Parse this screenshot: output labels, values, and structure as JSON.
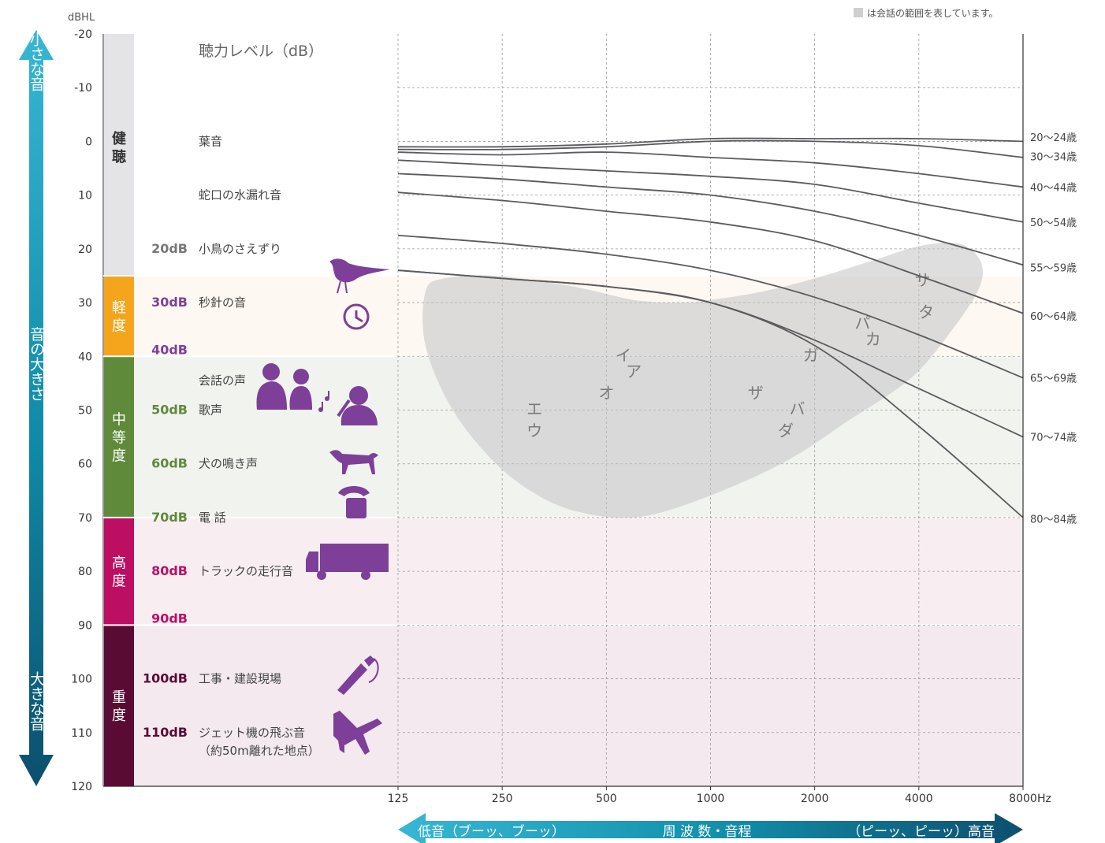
{
  "note": "は会話の範囲を表しています。",
  "colors": {
    "healthy": "#e4e4e6",
    "mild": "#f4a51c",
    "moderate": "#5f8a3a",
    "severe": "#bc0e62",
    "profound": "#5a0b34",
    "purple": "#7d3f98",
    "curve": "#5b5b5f",
    "speech": "#c2c2c4",
    "arrow": "#16809b"
  },
  "left_arrow": {
    "top": "小さな音",
    "middle": "音の大きさ",
    "bottom": "大きな音"
  },
  "bottom_arrow": {
    "left": "低音（ブーッ、ブーッ）",
    "center": "周 波 数・音程",
    "right": "（ピーッ、ピーッ）高音"
  },
  "heading": "聴力レベル（dB）",
  "categories": [
    {
      "label": "健聴",
      "from": -20,
      "to": 25,
      "band": "#ffffff",
      "color": "#e4e4e6",
      "text_color": "#333333"
    },
    {
      "label": "軽度",
      "from": 25,
      "to": 40,
      "band": "#fdf8f1",
      "color": "#f4a51c",
      "text_color": "#ffffff"
    },
    {
      "label": "中等度",
      "from": 40,
      "to": 70,
      "band": "#f1f3ef",
      "color": "#5f8a3a",
      "text_color": "#ffffff"
    },
    {
      "label": "高度",
      "from": 70,
      "to": 90,
      "band": "#f8eef2",
      "color": "#bc0e62",
      "text_color": "#ffffff"
    },
    {
      "label": "重度",
      "from": 90,
      "to": 120,
      "band": "#f3e9ef",
      "color": "#5a0b34",
      "text_color": "#ffffff"
    }
  ],
  "boundary_labels": [
    {
      "text": "40dB",
      "db": 40,
      "color": "#7d3f98"
    },
    {
      "text": "90dB",
      "db": 90,
      "color": "#bc0e62"
    }
  ],
  "examples": [
    {
      "db": 0,
      "db_label": "",
      "text": "葉音",
      "icon": "",
      "db_color": "#666666"
    },
    {
      "db": 10,
      "db_label": "",
      "text": "蛇口の水漏れ音",
      "icon": "",
      "db_color": "#666666"
    },
    {
      "db": 20,
      "db_label": "20dB",
      "text": "小鳥のさえずり",
      "icon": "bird-icon",
      "db_color": "#777777"
    },
    {
      "db": 30,
      "db_label": "30dB",
      "text": "秒針の音",
      "icon": "clock-icon",
      "db_color": "#7d3f98"
    },
    {
      "db": 44.5,
      "db_label": "",
      "text": "会話の声",
      "icon": "conversation-icon",
      "db_color": "#5f8a3a"
    },
    {
      "db": 50,
      "db_label": "50dB",
      "text": "歌声",
      "icon": "singer-icon",
      "db_color": "#5f8a3a"
    },
    {
      "db": 60,
      "db_label": "60dB",
      "text": "犬の鳴き声",
      "icon": "dog-icon",
      "db_color": "#5f8a3a"
    },
    {
      "db": 70,
      "db_label": "70dB",
      "text": "電 話",
      "icon": "telephone-icon",
      "db_color": "#5f8a3a"
    },
    {
      "db": 80,
      "db_label": "80dB",
      "text": "トラックの走行音",
      "icon": "truck-icon",
      "db_color": "#bc0e62"
    },
    {
      "db": 100,
      "db_label": "100dB",
      "text": "工事・建設現場",
      "icon": "drill-icon",
      "db_color": "#5a0b34"
    },
    {
      "db": 110,
      "db_label": "110dB",
      "text": "ジェット機の飛ぶ音",
      "icon": "jet-icon",
      "db_color": "#5a0b34"
    }
  ],
  "jet_subtext": "（約50m離れた地点）",
  "chart_data": {
    "type": "line",
    "y_unit_label": "dBHL",
    "x_unit_label": "Hz",
    "x_log2": true,
    "x_ticks": [
      125,
      250,
      500,
      1000,
      2000,
      4000,
      8000
    ],
    "x_tick_labels": [
      "125",
      "250",
      "500",
      "1000",
      "2000",
      "4000",
      "8000"
    ],
    "ylim": [
      -20,
      120
    ],
    "y_ticks": [
      -20,
      -10,
      0,
      10,
      20,
      30,
      40,
      50,
      60,
      70,
      80,
      90,
      100,
      110,
      120
    ],
    "y_inverted": true,
    "grid": "dashed",
    "series": [
      {
        "name": "20〜24歳",
        "x": [
          125,
          250,
          500,
          1000,
          2000,
          4000,
          8000
        ],
        "y": [
          1,
          1,
          0.5,
          -0.5,
          -0.5,
          -0.5,
          0
        ]
      },
      {
        "name": "30〜34歳",
        "x": [
          125,
          250,
          500,
          1000,
          2000,
          4000,
          8000
        ],
        "y": [
          1.5,
          1.5,
          1,
          0,
          0,
          0.8,
          3
        ]
      },
      {
        "name": "40〜44歳",
        "x": [
          125,
          250,
          500,
          1000,
          2000,
          4000,
          8000
        ],
        "y": [
          2,
          2.5,
          2,
          3,
          4,
          6,
          8.5
        ]
      },
      {
        "name": "50〜54歳",
        "x": [
          125,
          250,
          500,
          1000,
          2000,
          4000,
          8000
        ],
        "y": [
          3.5,
          4.5,
          5.5,
          6.5,
          8,
          11.5,
          15
        ]
      },
      {
        "name": "55〜59歳",
        "x": [
          125,
          250,
          500,
          1000,
          2000,
          4000,
          8000
        ],
        "y": [
          6,
          7,
          8.5,
          10,
          13,
          17.5,
          23
        ]
      },
      {
        "name": "60〜64歳",
        "x": [
          125,
          250,
          500,
          1000,
          2000,
          4000,
          8000
        ],
        "y": [
          9.5,
          11,
          13,
          15,
          18.5,
          25,
          32
        ]
      },
      {
        "name": "65〜69歳",
        "x": [
          125,
          250,
          500,
          1000,
          2000,
          4000,
          8000
        ],
        "y": [
          17.5,
          19,
          21,
          24,
          29,
          36,
          44
        ]
      },
      {
        "name": "70〜74歳",
        "x": [
          125,
          250,
          500,
          1000,
          2000,
          4000,
          8000
        ],
        "y": [
          24,
          25.5,
          27,
          30,
          37,
          46,
          55
        ]
      },
      {
        "name": "80〜84歳",
        "x": [
          125,
          250,
          500,
          1000,
          2000,
          4000,
          8000
        ],
        "y": [
          24,
          25.5,
          27,
          30,
          38,
          53,
          70
        ]
      }
    ],
    "speech_banana": {
      "label": "speech range",
      "outline": [
        [
          150,
          28
        ],
        [
          170,
          25.5
        ],
        [
          240,
          25
        ],
        [
          400,
          27
        ],
        [
          600,
          29.5
        ],
        [
          800,
          30
        ],
        [
          1000,
          29.5
        ],
        [
          1400,
          28
        ],
        [
          2000,
          25.5
        ],
        [
          3000,
          22
        ],
        [
          4000,
          19.5
        ],
        [
          5200,
          19
        ],
        [
          6000,
          22
        ],
        [
          6000,
          27
        ],
        [
          5000,
          35
        ],
        [
          3800,
          44
        ],
        [
          2500,
          52
        ],
        [
          1600,
          60
        ],
        [
          900,
          67
        ],
        [
          600,
          70
        ],
        [
          420,
          69
        ],
        [
          320,
          66
        ],
        [
          240,
          60
        ],
        [
          180,
          50
        ],
        [
          150,
          38
        ]
      ]
    },
    "phonemes": [
      {
        "text": "イ",
        "x": 560,
        "y": 40
      },
      {
        "text": "ア",
        "x": 600,
        "y": 43
      },
      {
        "text": "オ",
        "x": 500,
        "y": 47
      },
      {
        "text": "エ",
        "x": 310,
        "y": 50
      },
      {
        "text": "ウ",
        "x": 310,
        "y": 54
      },
      {
        "text": "ガ",
        "x": 1950,
        "y": 40
      },
      {
        "text": "ザ",
        "x": 1350,
        "y": 47
      },
      {
        "text": "バ",
        "x": 1780,
        "y": 50
      },
      {
        "text": "ダ",
        "x": 1650,
        "y": 54
      },
      {
        "text": "パ",
        "x": 2750,
        "y": 34
      },
      {
        "text": "カ",
        "x": 2950,
        "y": 37
      },
      {
        "text": "サ",
        "x": 4100,
        "y": 26
      },
      {
        "text": "タ",
        "x": 4200,
        "y": 32
      }
    ]
  }
}
